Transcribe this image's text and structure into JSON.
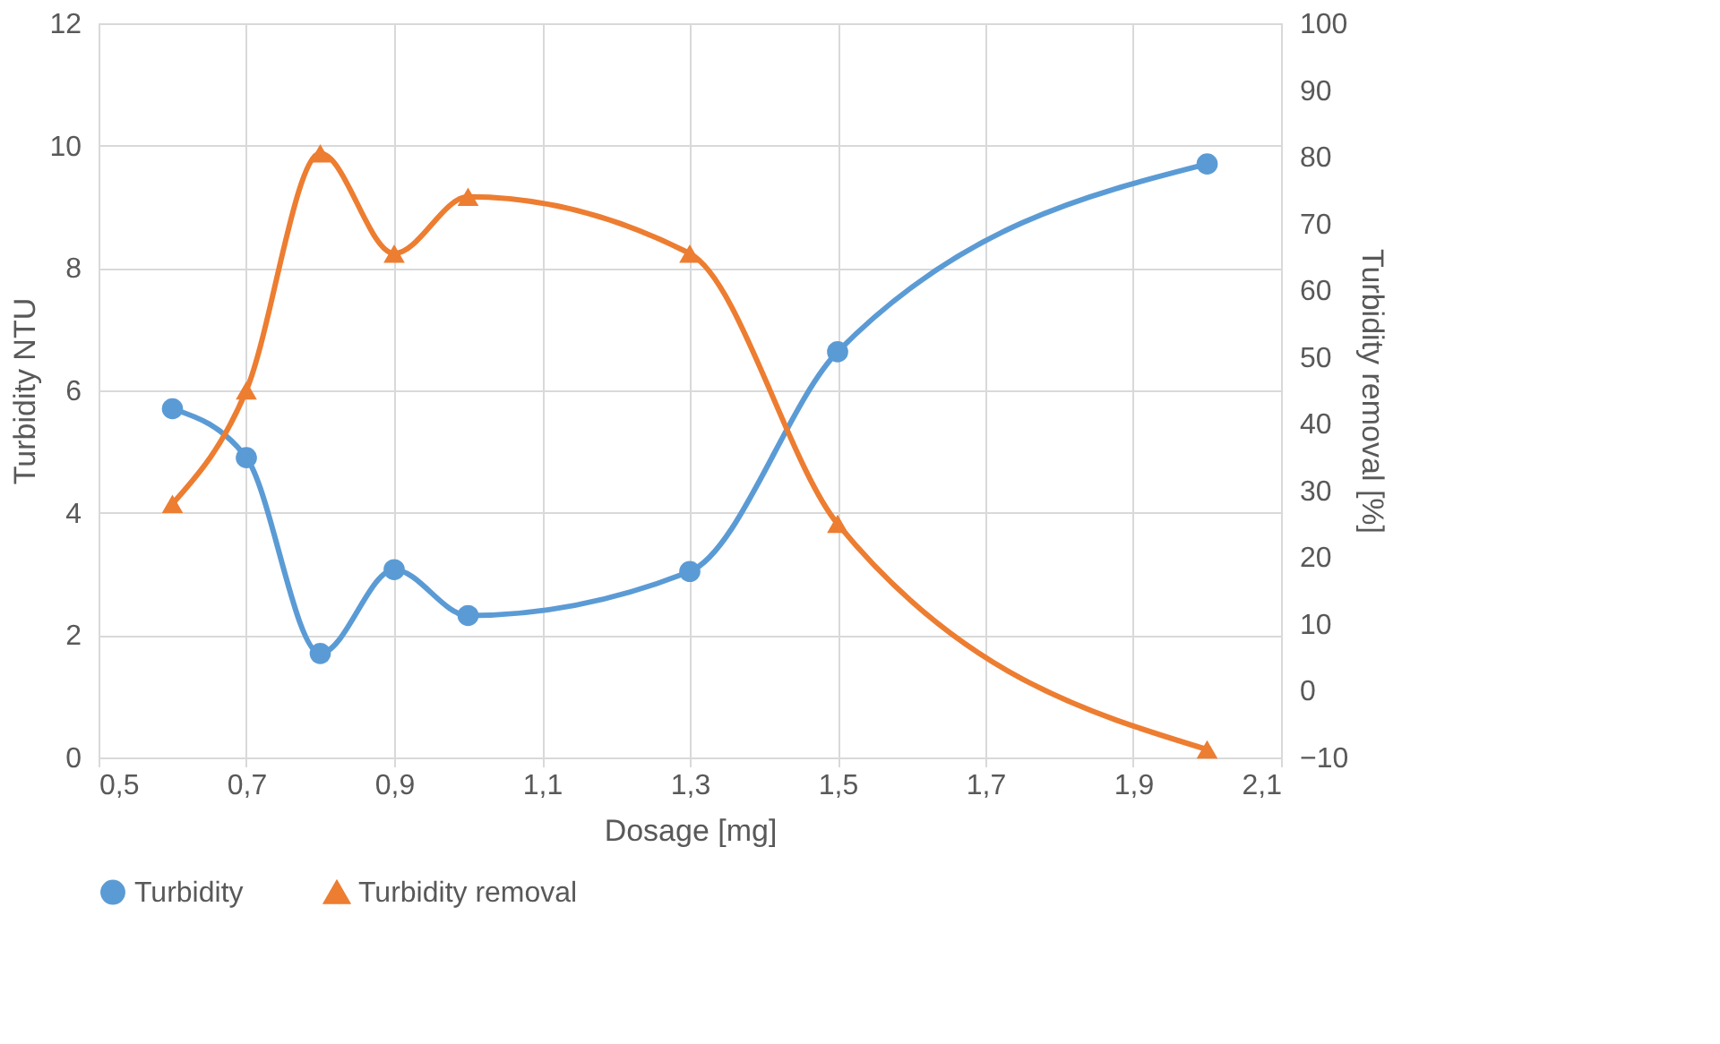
{
  "chart_data": {
    "type": "line",
    "xlabel": "Dosage [mg]",
    "ylabel": "Turbidity NTU",
    "y2label": "Turbidity removal [%]",
    "x": [
      0.6,
      0.7,
      0.8,
      0.9,
      1.0,
      1.3,
      1.5,
      2.0
    ],
    "series": [
      {
        "name": "Turbidity",
        "color": "#5b9bd5",
        "marker": "circle",
        "values": [
          5.7,
          4.9,
          1.7,
          3.07,
          2.32,
          3.04,
          6.63,
          9.7
        ]
      },
      {
        "name": "Turbidity removal",
        "color": "#ed7d31",
        "marker": "triangle",
        "axis": "y2",
        "values": [
          28,
          45,
          80.5,
          65.5,
          74,
          65.5,
          25,
          -8.8
        ]
      }
    ],
    "xlim": [
      0.5,
      2.1
    ],
    "xticks": [
      {
        "value": 0.5,
        "label": "0,5"
      },
      {
        "value": 0.7,
        "label": "0,7"
      },
      {
        "value": 0.9,
        "label": "0,9"
      },
      {
        "value": 1.1,
        "label": "1,1"
      },
      {
        "value": 1.3,
        "label": "1,3"
      },
      {
        "value": 1.5,
        "label": "1,5"
      },
      {
        "value": 1.7,
        "label": "1,7"
      },
      {
        "value": 1.9,
        "label": "1,9"
      },
      {
        "value": 2.1,
        "label": "2,1"
      }
    ],
    "ylim": [
      0,
      12
    ],
    "yticks": [
      0,
      2,
      4,
      6,
      8,
      10,
      12
    ],
    "y2lim": [
      -10,
      100
    ],
    "y2ticks": [
      -10,
      0,
      10,
      20,
      30,
      40,
      50,
      60,
      70,
      80,
      90,
      100
    ],
    "grid": true,
    "legend": "bottom"
  }
}
